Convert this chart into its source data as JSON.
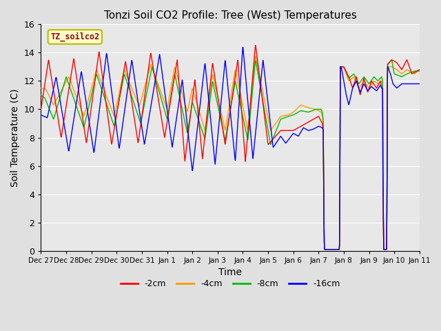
{
  "title": "Tonzi Soil CO2 Profile: Tree (West) Temperatures",
  "xlabel": "Time",
  "ylabel": "Soil Temperature (C)",
  "ylim": [
    0,
    16
  ],
  "yticks": [
    0,
    2,
    4,
    6,
    8,
    10,
    12,
    14,
    16
  ],
  "bg_color": "#e0e0e0",
  "plot_bg": "#e8e8e8",
  "grid_color": "#ffffff",
  "legend_label": "TZ_soilco2",
  "legend_bg": "#ffffcc",
  "legend_border": "#bbbb00",
  "colors": [
    "#ff0000",
    "#ff9900",
    "#00bb00",
    "#0000ff"
  ],
  "labels": [
    "-2cm",
    "-4cm",
    "-8cm",
    "-16cm"
  ],
  "xtick_labels": [
    "Dec 27",
    "Dec 28",
    "Dec 29",
    "Dec 30",
    "Dec 31",
    "Jan 1",
    "Jan 2",
    "Jan 3",
    "Jan 4",
    "Jan 5",
    "Jan 6",
    "Jan 7",
    "Jan 8",
    "Jan 9",
    "Jan 10",
    "Jan 11"
  ]
}
